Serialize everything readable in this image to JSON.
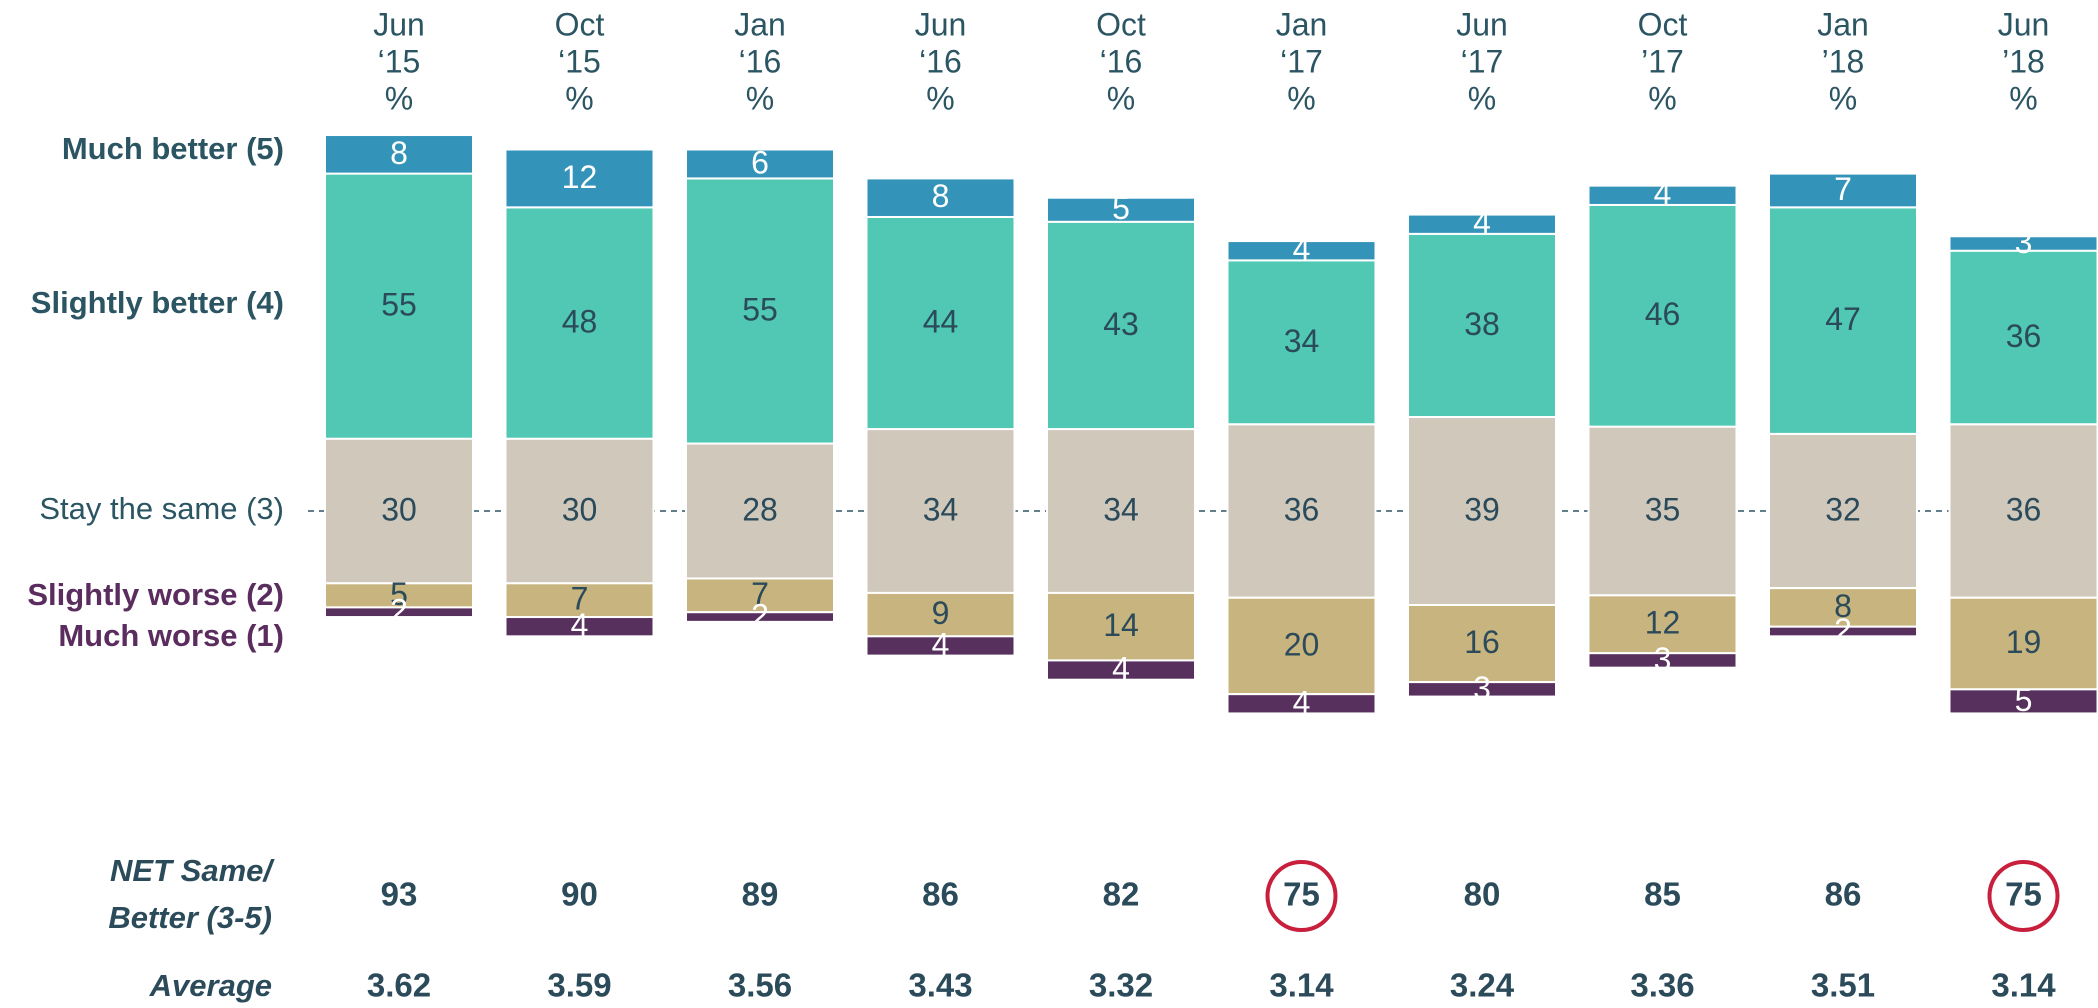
{
  "chart_data": {
    "type": "diverging-stacked-bar",
    "categories": [
      [
        "Jun",
        "‘15"
      ],
      [
        "Oct",
        "‘15"
      ],
      [
        "Jan",
        "‘16"
      ],
      [
        "Jun",
        "‘16"
      ],
      [
        "Oct",
        "‘16"
      ],
      [
        "Jan",
        "‘17"
      ],
      [
        "Jun",
        "‘17"
      ],
      [
        "Oct",
        "’17"
      ],
      [
        "Jan",
        "’18"
      ],
      [
        "Jun",
        "’18"
      ]
    ],
    "unit": "%",
    "series": [
      {
        "name": "Much better (5)",
        "color": "#3393b8",
        "values": [
          8,
          12,
          6,
          8,
          5,
          4,
          4,
          4,
          7,
          3
        ]
      },
      {
        "name": "Slightly better (4)",
        "color": "#50c8b4",
        "values": [
          55,
          48,
          55,
          44,
          43,
          34,
          38,
          46,
          47,
          36
        ]
      },
      {
        "name": "Stay the same (3)",
        "color": "#d0c8bb",
        "values": [
          30,
          30,
          28,
          34,
          34,
          36,
          39,
          35,
          32,
          36
        ]
      },
      {
        "name": "Slightly worse (2)",
        "color": "#c8b47e",
        "values": [
          5,
          7,
          7,
          9,
          14,
          20,
          16,
          12,
          8,
          19
        ]
      },
      {
        "name": "Much worse (1)",
        "color": "#58305e",
        "values": [
          2,
          4,
          2,
          4,
          4,
          4,
          3,
          3,
          2,
          5
        ]
      }
    ],
    "net_label": [
      "NET Same/",
      "Better (3-5)"
    ],
    "net_values": [
      93,
      90,
      89,
      86,
      82,
      75,
      80,
      85,
      86,
      75
    ],
    "net_highlight": [
      5,
      9
    ],
    "average_label": "Average",
    "average_values": [
      3.62,
      3.59,
      3.56,
      3.43,
      3.32,
      3.14,
      3.24,
      3.36,
      3.51,
      3.14
    ]
  }
}
